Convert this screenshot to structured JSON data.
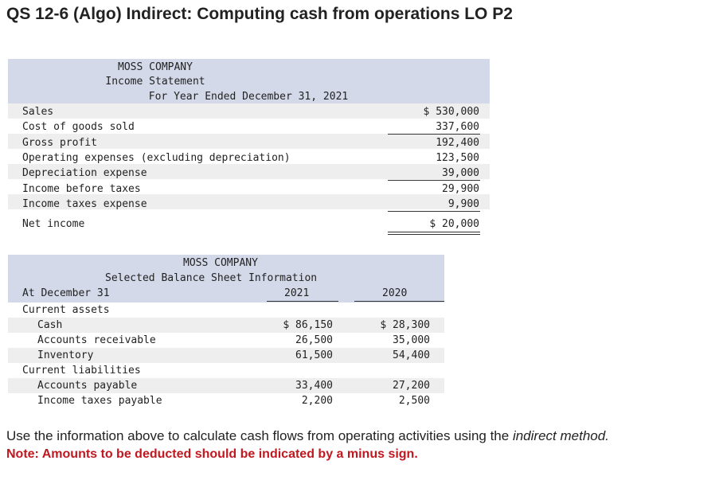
{
  "title": "QS 12-6 (Algo) Indirect: Computing cash from operations LO P2",
  "income_statement": {
    "company": "MOSS COMPANY",
    "name": "Income Statement",
    "period": "For Year Ended December 31, 2021",
    "rows": [
      {
        "label": "Sales",
        "value": "$ 530,000"
      },
      {
        "label": "Cost of goods sold",
        "value": "337,600"
      },
      {
        "label": "Gross profit",
        "value": "192,400"
      },
      {
        "label": "Operating expenses (excluding depreciation)",
        "value": "123,500"
      },
      {
        "label": "Depreciation expense",
        "value": "39,000"
      },
      {
        "label": "Income before taxes",
        "value": "29,900"
      },
      {
        "label": "Income taxes expense",
        "value": "9,900"
      },
      {
        "label": "Net income",
        "value": "$ 20,000"
      }
    ]
  },
  "balance_sheet": {
    "company": "MOSS COMPANY",
    "name": "Selected Balance Sheet Information",
    "at_label": "At December 31",
    "col_2021": "2021",
    "col_2020": "2020",
    "current_assets": "Current assets",
    "current_liabilities": "Current liabilities",
    "rows": [
      {
        "label": "Cash",
        "v2021": "$ 86,150",
        "v2020": "$ 28,300"
      },
      {
        "label": "Accounts receivable",
        "v2021": "26,500",
        "v2020": "35,000"
      },
      {
        "label": "Inventory",
        "v2021": "61,500",
        "v2020": "54,400"
      },
      {
        "label": "Accounts payable",
        "v2021": "33,400",
        "v2020": "27,200"
      },
      {
        "label": "Income taxes payable",
        "v2021": "2,200",
        "v2020": "2,500"
      }
    ]
  },
  "instructions": {
    "before": "Use the information above to calculate cash flows from operating activities using the ",
    "emphasis": "indirect method.",
    "note": "Note: Amounts to be deducted should be indicated by a minus sign."
  }
}
